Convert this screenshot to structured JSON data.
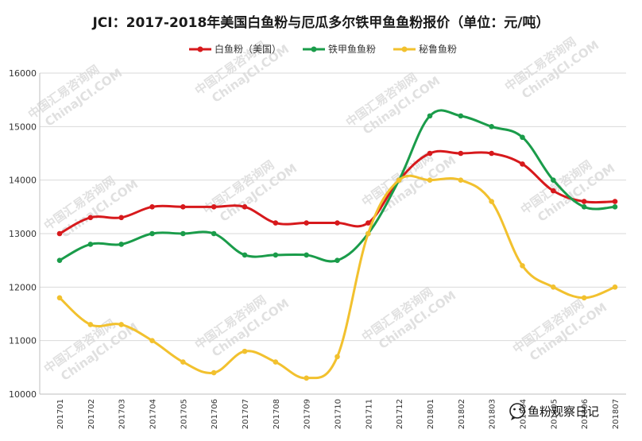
{
  "chart_data": {
    "type": "line",
    "title": "JCI：2017-2018年美国白鱼粉与厄瓜多尔铁甲鱼鱼粉报价（单位：元/吨）",
    "xlabel": "",
    "ylabel": "",
    "categories": [
      "201701",
      "201702",
      "201703",
      "201704",
      "201705",
      "201706",
      "201707",
      "201708",
      "201709",
      "201710",
      "201711",
      "201712",
      "201801",
      "201802",
      "201803",
      "201804",
      "201805",
      "201806",
      "201807"
    ],
    "ylim": [
      10000,
      16000
    ],
    "yticks": [
      10000,
      11000,
      12000,
      13000,
      14000,
      15000,
      16000
    ],
    "grid": true,
    "legend_position": "top",
    "series": [
      {
        "name": "白鱼粉（美国）",
        "color": "#d7191c",
        "values": [
          13000,
          13300,
          13300,
          13500,
          13500,
          13500,
          13500,
          13200,
          13200,
          13200,
          13200,
          14000,
          14500,
          14500,
          14500,
          14300,
          13800,
          13600,
          13600
        ]
      },
      {
        "name": "铁甲鱼鱼粉",
        "color": "#1a9c4a",
        "values": [
          12500,
          12800,
          12800,
          13000,
          13000,
          13000,
          12600,
          12600,
          12600,
          12500,
          13000,
          14000,
          15200,
          15200,
          15000,
          14800,
          14000,
          13500,
          13500
        ]
      },
      {
        "name": "秘鲁鱼粉",
        "color": "#f2c12e",
        "values": [
          11800,
          11300,
          11300,
          11000,
          10600,
          10400,
          10800,
          10600,
          10300,
          10700,
          13000,
          14000,
          14000,
          14000,
          13600,
          12400,
          12000,
          11800,
          12000
        ]
      }
    ]
  },
  "watermark": {
    "text": "中国汇易咨询网",
    "text2": "ChinaJCI.COM"
  },
  "brand": {
    "label": "鱼粉观察日记",
    "icon": "wechat-icon"
  }
}
